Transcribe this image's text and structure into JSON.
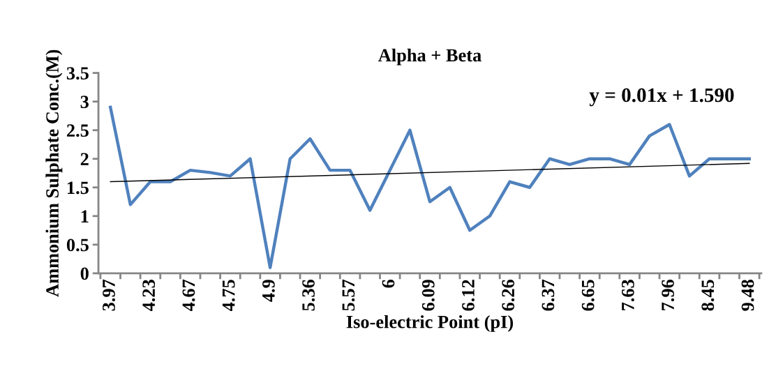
{
  "chart_data": {
    "type": "line",
    "title": "Alpha + Beta",
    "xlabel": "Iso-electric Point (pI)",
    "ylabel": "Ammonium Sulphate Conc.(M)",
    "categories": [
      "3.97",
      null,
      "4.23",
      null,
      "4.67",
      null,
      "4.75",
      null,
      "4.9",
      null,
      "5.36",
      null,
      "5.57",
      null,
      "6",
      null,
      "6.09",
      null,
      "6.12",
      null,
      "6.26",
      null,
      "6.37",
      null,
      "6.65",
      null,
      "7.63",
      null,
      "7.96",
      null,
      "8.45",
      null,
      "9.48"
    ],
    "series": [
      {
        "color": "#4f81bd",
        "values": [
          2.9,
          1.2,
          1.6,
          1.6,
          1.8,
          1.76,
          1.7,
          2.0,
          0.1,
          2.0,
          2.35,
          1.8,
          1.8,
          1.1,
          1.8,
          2.5,
          1.25,
          1.5,
          0.75,
          1.0,
          1.6,
          1.5,
          2.0,
          1.9,
          2.0,
          2.0,
          1.9,
          2.4,
          2.6,
          1.7,
          2.0,
          2.0,
          2.0
        ]
      },
      {
        "type": "line",
        "color": "#000000",
        "values": [
          1.6,
          null,
          null,
          null,
          null,
          null,
          null,
          null,
          null,
          null,
          null,
          null,
          null,
          null,
          null,
          null,
          null,
          null,
          null,
          null,
          null,
          null,
          null,
          null,
          null,
          null,
          null,
          null,
          null,
          null,
          null,
          null,
          1.92
        ]
      }
    ],
    "ylim": [
      0,
      3.5
    ],
    "yticks": [
      0,
      0.5,
      1,
      1.5,
      2,
      2.5,
      3,
      3.5
    ],
    "grid": false,
    "legend": false,
    "annotations": [
      {
        "text": "y = 0.01x + 1.590"
      }
    ]
  }
}
